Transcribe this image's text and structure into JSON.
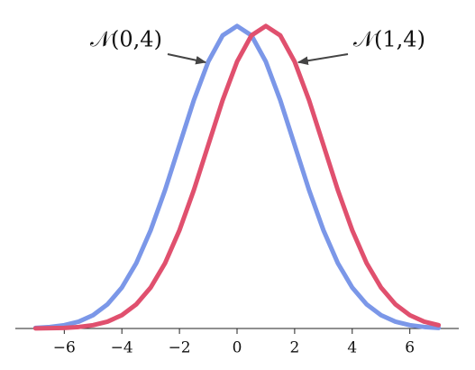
{
  "chart_data": {
    "type": "line",
    "x": [
      -7,
      -6.5,
      -6,
      -5.5,
      -5,
      -4.5,
      -4,
      -3.5,
      -3,
      -2.5,
      -2,
      -1.5,
      -1,
      -0.5,
      0,
      0.5,
      1,
      1.5,
      2,
      2.5,
      3,
      3.5,
      4,
      4.5,
      5,
      5.5,
      6,
      6.5,
      7
    ],
    "series": [
      {
        "name": "𝒩(0,4)",
        "color": "#7b97e8",
        "values": [
          0.0004,
          0.001,
          0.0022,
          0.0045,
          0.0088,
          0.0159,
          0.027,
          0.0431,
          0.0648,
          0.0913,
          0.121,
          0.1506,
          0.176,
          0.1933,
          0.1995,
          0.1933,
          0.176,
          0.1506,
          0.121,
          0.0913,
          0.0648,
          0.0431,
          0.027,
          0.0159,
          0.0088,
          0.0045,
          0.0022,
          0.001,
          0.0004
        ]
      },
      {
        "name": "𝒩(1,4)",
        "color": "#e0506e",
        "values": [
          0.0001,
          0.0002,
          0.0004,
          0.001,
          0.0022,
          0.0045,
          0.0088,
          0.0159,
          0.027,
          0.0431,
          0.0648,
          0.0913,
          0.121,
          0.1506,
          0.176,
          0.1933,
          0.1995,
          0.1933,
          0.176,
          0.1506,
          0.121,
          0.0913,
          0.0648,
          0.0431,
          0.027,
          0.0159,
          0.0088,
          0.0045,
          0.0022
        ]
      }
    ],
    "xlim": [
      -7.7,
      7.7
    ],
    "xticks": [
      {
        "value": -6,
        "label": "−6"
      },
      {
        "value": -4,
        "label": "−4"
      },
      {
        "value": -2,
        "label": "−2"
      },
      0,
      2,
      4,
      6
    ],
    "ylim": [
      0,
      0.2
    ]
  }
}
